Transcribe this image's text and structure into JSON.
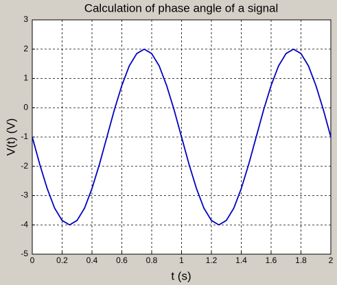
{
  "chart_data": {
    "type": "line",
    "title": "Calculation of phase angle of a signal",
    "x_label": "t (s)",
    "y_label": "V(t) (V)",
    "x": [
      0,
      0.05,
      0.1,
      0.15,
      0.2,
      0.25,
      0.3,
      0.35,
      0.4,
      0.45,
      0.5,
      0.55,
      0.6,
      0.65,
      0.7,
      0.75,
      0.8,
      0.85,
      0.9,
      0.95,
      1,
      1.05,
      1.1,
      1.15,
      1.2,
      1.25,
      1.3,
      1.35,
      1.4,
      1.45,
      1.5,
      1.55,
      1.6,
      1.65,
      1.7,
      1.75,
      1.8,
      1.85,
      1.9,
      1.95,
      2
    ],
    "series": [
      {
        "color": "#0000c0",
        "values": [
          -1,
          -1.93,
          -2.76,
          -3.43,
          -3.85,
          -4,
          -3.85,
          -3.43,
          -2.76,
          -1.93,
          -1,
          -0.07,
          0.76,
          1.43,
          1.85,
          2,
          1.85,
          1.43,
          0.76,
          -0.07,
          -1,
          -1.93,
          -2.76,
          -3.43,
          -3.85,
          -4,
          -3.85,
          -3.43,
          -2.76,
          -1.93,
          -1,
          -0.07,
          0.76,
          1.43,
          1.85,
          2,
          1.85,
          1.43,
          0.76,
          -0.07,
          -1
        ]
      }
    ],
    "xlim": [
      0,
      2
    ],
    "xticks": [
      0,
      0.2,
      0.4,
      0.6,
      0.8,
      1,
      1.2,
      1.4,
      1.6,
      1.8,
      2
    ],
    "ylim": [
      -5,
      3
    ],
    "yticks": [
      -5,
      -4,
      -3,
      -2,
      -1,
      0,
      1,
      2,
      3
    ],
    "grid": true
  }
}
